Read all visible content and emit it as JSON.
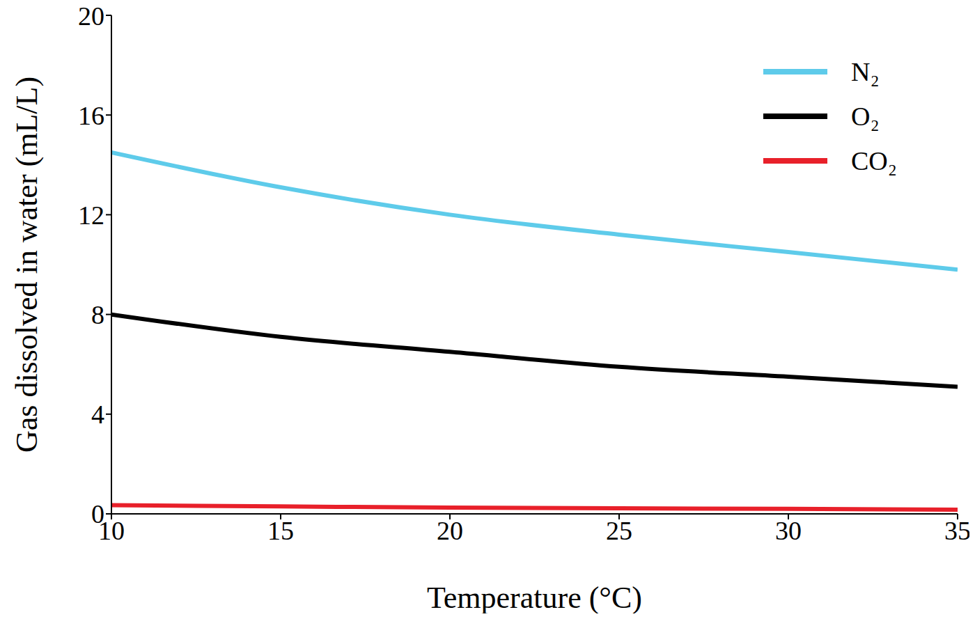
{
  "chart_data": {
    "type": "line",
    "x_label": "Temperature (°C)",
    "y_label": "Gas dissolved in water (mL/L)",
    "x": [
      10,
      15,
      20,
      25,
      30,
      35
    ],
    "series": [
      {
        "name": "N₂",
        "color": "#5ecbea",
        "values": [
          14.5,
          13.1,
          12.0,
          11.2,
          10.5,
          9.8
        ]
      },
      {
        "name": "O₂",
        "color": "#000000",
        "values": [
          8.0,
          7.1,
          6.5,
          5.9,
          5.5,
          5.1
        ]
      },
      {
        "name": "CO₂",
        "color": "#e8202a",
        "values": [
          0.35,
          0.3,
          0.25,
          0.22,
          0.2,
          0.17
        ]
      }
    ],
    "xlim": [
      10,
      35
    ],
    "xticks": [
      10,
      15,
      20,
      25,
      30,
      35
    ],
    "ylim": [
      0,
      20
    ],
    "yticks": [
      0,
      4,
      8,
      12,
      16,
      20
    ],
    "grid": false,
    "legend": "upper right"
  }
}
